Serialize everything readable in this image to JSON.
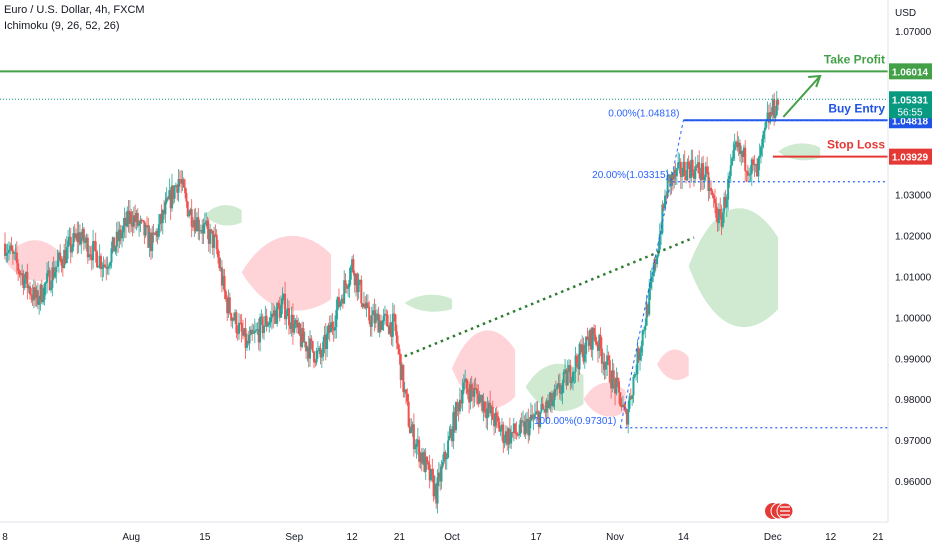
{
  "header": {
    "symbol": "Euro / U.S. Dollar, 4h, FXCM",
    "indicator": "Ichimoku (9, 26, 52, 26)"
  },
  "colors": {
    "bull": "#26a69a",
    "bear": "#ef5350",
    "cloud_bull": "#c8e6c9",
    "cloud_bear": "#ffcdd2",
    "take_profit": "#43a047",
    "buy_entry": "#1e53e5",
    "stop_loss": "#e53935",
    "current_price": "#089981",
    "fib": "#2962ff",
    "trend_dotted": "#2e7d32"
  },
  "chart_data": {
    "type": "candlestick",
    "currency_label": "USD",
    "ylim": [
      0.954,
      1.075
    ],
    "y_ticks": [
      "1.07000",
      "1.06000",
      "1.05000",
      "1.04000",
      "1.03000",
      "1.02000",
      "1.01000",
      "1.00000",
      "0.99000",
      "0.98000",
      "0.97000",
      "0.96000"
    ],
    "x_ticks": [
      "8",
      "Aug",
      "15",
      "Sep",
      "12",
      "21",
      "Oct",
      "17",
      "Nov",
      "14",
      "Dec",
      "12",
      "21"
    ],
    "levels": [
      {
        "name": "take_profit",
        "label": "Take Profit",
        "price": 1.06014,
        "badge": "1.06014"
      },
      {
        "name": "buy_entry",
        "label": "Buy Entry",
        "price": 1.04818,
        "badge": "1.04818"
      },
      {
        "name": "stop_loss",
        "label": "Stop Loss",
        "price": 1.03929,
        "badge": "1.03929"
      }
    ],
    "current_price": {
      "price": 1.05331,
      "badge": "1.05331",
      "countdown": "56:55"
    },
    "fibonacci": [
      {
        "label": "0.00%(1.04818)",
        "price": 1.04818
      },
      {
        "label": "20.00%(1.03315)",
        "price": 1.03315
      },
      {
        "label": "100.00%(0.97301)",
        "price": 0.97301
      }
    ],
    "trendline": {
      "from": {
        "date": "2022-09-22",
        "price": 0.9905
      },
      "to": {
        "date": "2022-11-16",
        "price": 1.0195
      }
    },
    "price_path": [
      [
        "2022-07-08",
        1.018
      ],
      [
        "2022-07-14",
        1.004
      ],
      [
        "2022-07-18",
        1.013
      ],
      [
        "2022-07-22",
        1.02
      ],
      [
        "2022-07-27",
        1.013
      ],
      [
        "2022-08-01",
        1.025
      ],
      [
        "2022-08-05",
        1.018
      ],
      [
        "2022-08-10",
        1.034
      ],
      [
        "2022-08-12",
        1.026
      ],
      [
        "2022-08-17",
        1.018
      ],
      [
        "2022-08-19",
        1.004
      ],
      [
        "2022-08-23",
        0.993
      ],
      [
        "2022-08-26",
        0.998
      ],
      [
        "2022-08-30",
        1.003
      ],
      [
        "2022-09-02",
        0.995
      ],
      [
        "2022-09-06",
        0.99
      ],
      [
        "2022-09-12",
        1.013
      ],
      [
        "2022-09-15",
        1.0
      ],
      [
        "2022-09-20",
        0.998
      ],
      [
        "2022-09-23",
        0.973
      ],
      [
        "2022-09-28",
        0.957
      ],
      [
        "2022-10-03",
        0.983
      ],
      [
        "2022-10-06",
        0.981
      ],
      [
        "2022-10-11",
        0.971
      ],
      [
        "2022-10-14",
        0.972
      ],
      [
        "2022-10-20",
        0.979
      ],
      [
        "2022-10-25",
        0.99
      ],
      [
        "2022-10-28",
        0.996
      ],
      [
        "2022-11-02",
        0.98
      ],
      [
        "2022-11-03",
        0.975
      ],
      [
        "2022-11-08",
        1.008
      ],
      [
        "2022-11-11",
        1.033
      ],
      [
        "2022-11-15",
        1.037
      ],
      [
        "2022-11-18",
        1.035
      ],
      [
        "2022-11-21",
        1.023
      ],
      [
        "2022-11-24",
        1.041
      ],
      [
        "2022-11-28",
        1.035
      ],
      [
        "2022-11-30",
        1.048
      ],
      [
        "2022-12-02",
        1.053
      ]
    ],
    "cloud": [
      {
        "from": "2022-07-08",
        "to": "2022-07-18",
        "top": 1.02,
        "bottom": 1.008,
        "sentiment": "bear"
      },
      {
        "from": "2022-08-15",
        "to": "2022-08-22",
        "top": 1.028,
        "bottom": 1.022,
        "sentiment": "bull"
      },
      {
        "from": "2022-08-22",
        "to": "2022-09-08",
        "top": 1.022,
        "bottom": 1.0,
        "sentiment": "bear"
      },
      {
        "from": "2022-09-22",
        "to": "2022-10-01",
        "top": 1.006,
        "bottom": 1.001,
        "sentiment": "bull"
      },
      {
        "from": "2022-10-01",
        "to": "2022-10-13",
        "top": 0.999,
        "bottom": 0.976,
        "sentiment": "bear"
      },
      {
        "from": "2022-10-15",
        "to": "2022-10-26",
        "top": 0.99,
        "bottom": 0.976,
        "sentiment": "bull"
      },
      {
        "from": "2022-10-26",
        "to": "2022-11-03",
        "top": 0.985,
        "bottom": 0.975,
        "sentiment": "bear"
      },
      {
        "from": "2022-11-09",
        "to": "2022-11-15",
        "top": 0.993,
        "bottom": 0.984,
        "sentiment": "bear"
      },
      {
        "from": "2022-11-15",
        "to": "2022-12-02",
        "top": 1.03,
        "bottom": 0.995,
        "sentiment": "bull"
      },
      {
        "from": "2022-12-02",
        "to": "2022-12-10",
        "top": 1.043,
        "bottom": 1.038,
        "sentiment": "bull"
      }
    ]
  }
}
